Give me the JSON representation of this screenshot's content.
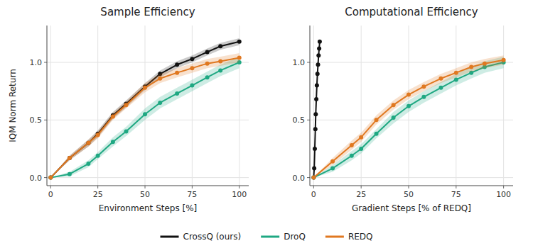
{
  "chart_data": [
    {
      "type": "line",
      "title": "Sample Efficiency",
      "x_label": "Environment Steps [%]",
      "y_label": "IQM Norm Return",
      "x": [
        0,
        10,
        20,
        25,
        33,
        40,
        50,
        58,
        67,
        75,
        83,
        90,
        100
      ],
      "series": [
        {
          "name": "CrossQ (ours)",
          "color": "#111111",
          "marker": "circle",
          "values": [
            0.0,
            0.17,
            0.3,
            0.38,
            0.54,
            0.64,
            0.79,
            0.9,
            0.98,
            1.03,
            1.09,
            1.14,
            1.18
          ],
          "lower": [
            0.0,
            0.15,
            0.27,
            0.35,
            0.51,
            0.61,
            0.76,
            0.87,
            0.95,
            1.0,
            1.06,
            1.11,
            1.15
          ],
          "upper": [
            0.0,
            0.19,
            0.33,
            0.41,
            0.57,
            0.67,
            0.82,
            0.93,
            1.01,
            1.06,
            1.12,
            1.17,
            1.21
          ]
        },
        {
          "name": "DroQ",
          "color": "#1fa882",
          "marker": "circle",
          "values": [
            0.0,
            0.03,
            0.12,
            0.19,
            0.31,
            0.4,
            0.55,
            0.65,
            0.73,
            0.8,
            0.87,
            0.93,
            1.0
          ],
          "lower": [
            0.0,
            0.01,
            0.09,
            0.16,
            0.27,
            0.36,
            0.5,
            0.6,
            0.68,
            0.75,
            0.82,
            0.88,
            0.95
          ],
          "upper": [
            0.0,
            0.05,
            0.15,
            0.22,
            0.35,
            0.44,
            0.6,
            0.7,
            0.78,
            0.85,
            0.92,
            0.98,
            1.05
          ]
        },
        {
          "name": "REDQ",
          "color": "#e07820",
          "marker": "circle",
          "values": [
            0.0,
            0.17,
            0.3,
            0.37,
            0.53,
            0.63,
            0.78,
            0.86,
            0.91,
            0.95,
            0.99,
            1.01,
            1.04
          ],
          "lower": [
            0.0,
            0.15,
            0.27,
            0.34,
            0.5,
            0.6,
            0.74,
            0.82,
            0.87,
            0.91,
            0.95,
            0.97,
            1.0
          ],
          "upper": [
            0.0,
            0.19,
            0.33,
            0.4,
            0.56,
            0.66,
            0.82,
            0.9,
            0.95,
            0.99,
            1.03,
            1.05,
            1.08
          ]
        }
      ],
      "xlim": [
        -2,
        105
      ],
      "xticks": [
        0,
        25,
        50,
        75,
        100
      ],
      "ylim": [
        -0.07,
        1.32
      ],
      "yticks": [
        {
          "value": 0.0,
          "label": "0.0"
        },
        0.5,
        {
          "value": 1.0,
          "label": "1.0"
        }
      ],
      "grid": true,
      "legend": "bottom"
    },
    {
      "type": "line",
      "title": "Computational Efficiency",
      "x_label": "Gradient Steps [% of REDQ]",
      "x": [
        0,
        10,
        20,
        25,
        33,
        42,
        50,
        58,
        67,
        75,
        83,
        90,
        100
      ],
      "series": [
        {
          "name": "CrossQ (ours)",
          "color": "#111111",
          "marker": "circle",
          "x": [
            0.0,
            0.3,
            0.6,
            0.9,
            1.1,
            1.4,
            1.7,
            2.0,
            2.3,
            2.6,
            2.9,
            3.2
          ],
          "values": [
            0.0,
            0.08,
            0.25,
            0.42,
            0.55,
            0.68,
            0.8,
            0.9,
            0.98,
            1.06,
            1.12,
            1.18
          ]
        },
        {
          "name": "DroQ",
          "color": "#1fa882",
          "marker": "circle",
          "values": [
            0.0,
            0.08,
            0.19,
            0.25,
            0.38,
            0.52,
            0.62,
            0.7,
            0.78,
            0.85,
            0.91,
            0.96,
            1.0
          ],
          "lower": [
            0.0,
            0.05,
            0.15,
            0.21,
            0.34,
            0.47,
            0.57,
            0.65,
            0.73,
            0.8,
            0.86,
            0.91,
            0.95
          ],
          "upper": [
            0.0,
            0.11,
            0.23,
            0.29,
            0.42,
            0.57,
            0.67,
            0.75,
            0.83,
            0.9,
            0.96,
            1.01,
            1.05
          ]
        },
        {
          "name": "REDQ",
          "color": "#e07820",
          "marker": "circle",
          "values": [
            0.0,
            0.14,
            0.28,
            0.35,
            0.5,
            0.63,
            0.72,
            0.79,
            0.86,
            0.91,
            0.96,
            0.99,
            1.02
          ],
          "lower": [
            0.0,
            0.11,
            0.24,
            0.31,
            0.46,
            0.59,
            0.68,
            0.75,
            0.82,
            0.87,
            0.92,
            0.95,
            0.98
          ],
          "upper": [
            0.0,
            0.17,
            0.32,
            0.39,
            0.54,
            0.67,
            0.76,
            0.83,
            0.9,
            0.95,
            1.0,
            1.03,
            1.06
          ]
        }
      ],
      "xlim": [
        -2,
        105
      ],
      "xticks": [
        0,
        25,
        50,
        75,
        100
      ],
      "ylim": [
        -0.07,
        1.32
      ],
      "yticks": [
        {
          "value": 0.0,
          "label": "0.0"
        },
        0.5,
        {
          "value": 1.0,
          "label": "1.0"
        }
      ],
      "grid": true
    }
  ]
}
